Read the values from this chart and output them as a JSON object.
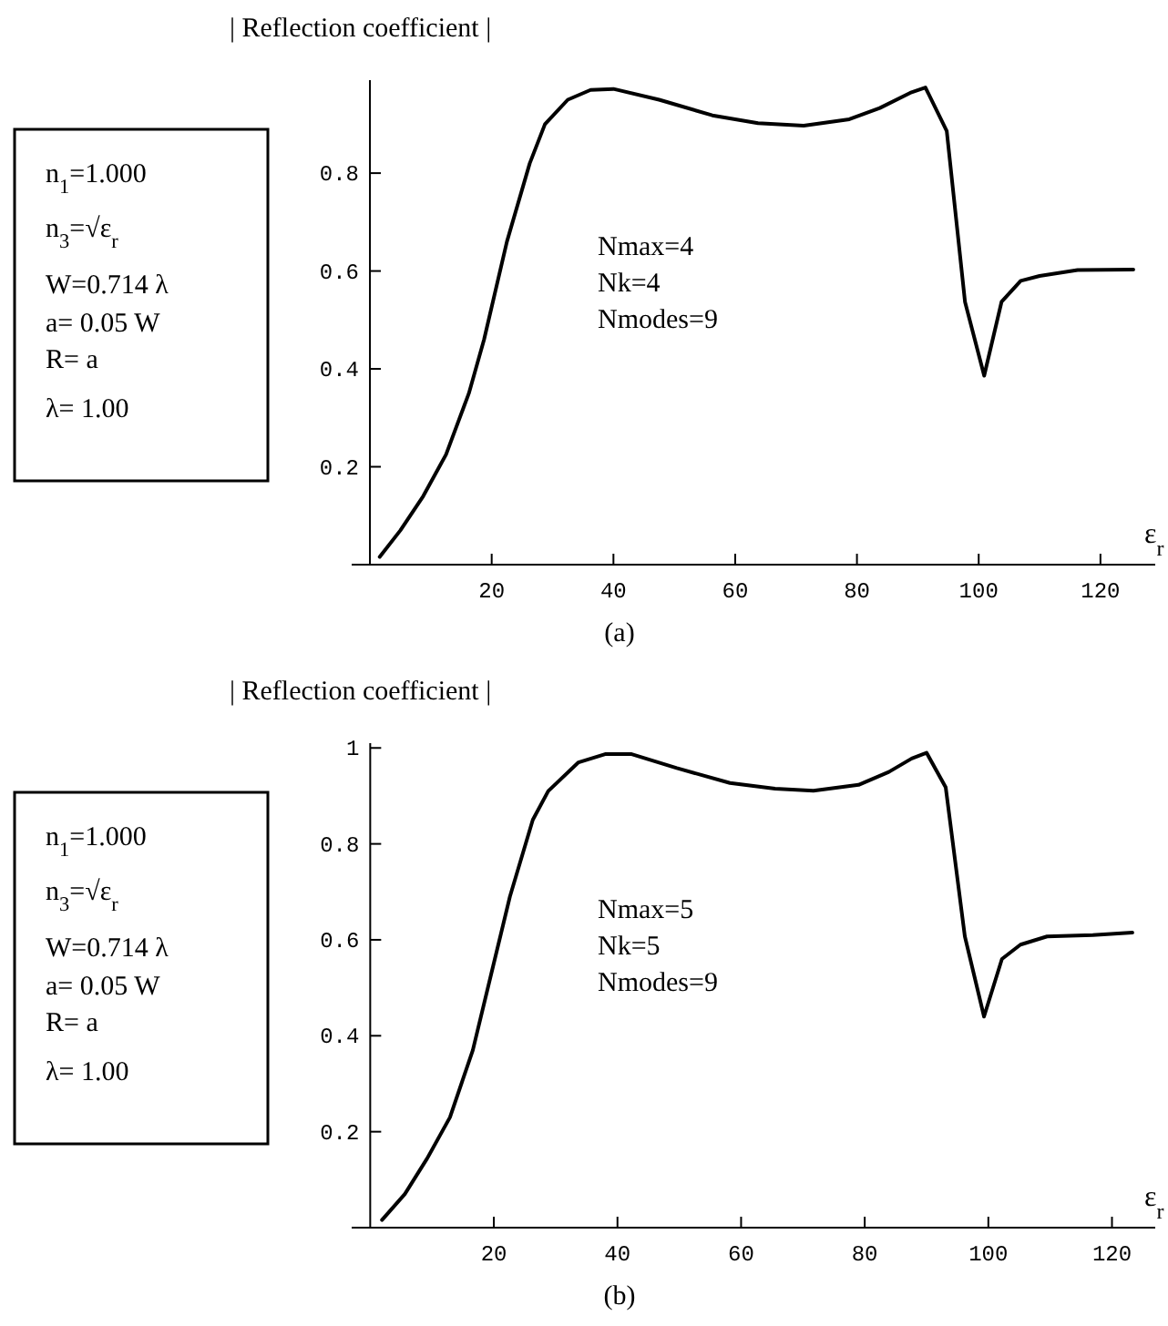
{
  "chart_data": [
    {
      "type": "line",
      "ylabel": "| Reflection coefficient |",
      "xlabel": "ε$_{r}$",
      "xlim": [
        -3,
        129
      ],
      "ylim": [
        0,
        0.99
      ],
      "xticks": [
        20,
        40,
        60,
        80,
        100,
        120
      ],
      "yticks": [
        0.2,
        0.4,
        0.6,
        0.8
      ],
      "color": "#000000",
      "x": [
        1.6,
        5,
        8.75,
        12.5,
        16.25,
        18.75,
        22.5,
        26.25,
        28.75,
        32.5,
        36.25,
        40,
        47.5,
        56.25,
        63.75,
        71.25,
        78.75,
        83.75,
        88.75,
        91.25,
        94.75,
        97.75,
        100.9,
        103.75,
        106.9,
        110,
        116.25,
        125.4
      ],
      "values": [
        0.016,
        0.07,
        0.14,
        0.225,
        0.35,
        0.46,
        0.66,
        0.82,
        0.9,
        0.95,
        0.97,
        0.972,
        0.95,
        0.918,
        0.902,
        0.897,
        0.91,
        0.933,
        0.964,
        0.975,
        0.886,
        0.537,
        0.386,
        0.537,
        0.58,
        0.59,
        0.602,
        0.603
      ],
      "annotations": [
        "n$_{1}$=1.000",
        "n$_{3}$=√ε$_{r}$",
        "W=0.714  λ",
        "a= 0.05 W",
        "R=  a",
        "λ= 1.00",
        "Nmax=4",
        "Nk=4",
        "Nmodes=9",
        "(a)"
      ]
    },
    {
      "type": "line",
      "ylabel": "| Reflection coefficient |",
      "xlabel": "ε$_{r}$",
      "xlim": [
        -3,
        127
      ],
      "ylim": [
        0,
        1.01
      ],
      "xticks": [
        20,
        40,
        60,
        80,
        100,
        120
      ],
      "yticks": [
        0.2,
        0.4,
        0.6,
        0.8,
        1
      ],
      "color": "#000000",
      "x": [
        1.9,
        5.6,
        9.2,
        12.9,
        16.6,
        19.6,
        22.6,
        26.3,
        28.8,
        33.7,
        38,
        42.3,
        49.6,
        58.2,
        65.5,
        71.7,
        79,
        83.9,
        87.6,
        90,
        93.1,
        96.2,
        99.3,
        102.2,
        105.2,
        109.5,
        116.9,
        123.3
      ],
      "values": [
        0.016,
        0.07,
        0.144,
        0.23,
        0.37,
        0.53,
        0.69,
        0.85,
        0.91,
        0.97,
        0.987,
        0.987,
        0.958,
        0.927,
        0.915,
        0.911,
        0.923,
        0.95,
        0.978,
        0.99,
        0.918,
        0.607,
        0.44,
        0.56,
        0.59,
        0.607,
        0.61,
        0.615
      ],
      "annotations": [
        "n$_{1}$=1.000",
        "n$_{3}$=√ε$_{r}$",
        "W=0.714  λ",
        "a= 0.05 W",
        "R=  a",
        "λ= 1.00",
        "Nmax=5",
        "Nk=5",
        "Nmodes=9",
        "(b)"
      ]
    }
  ]
}
